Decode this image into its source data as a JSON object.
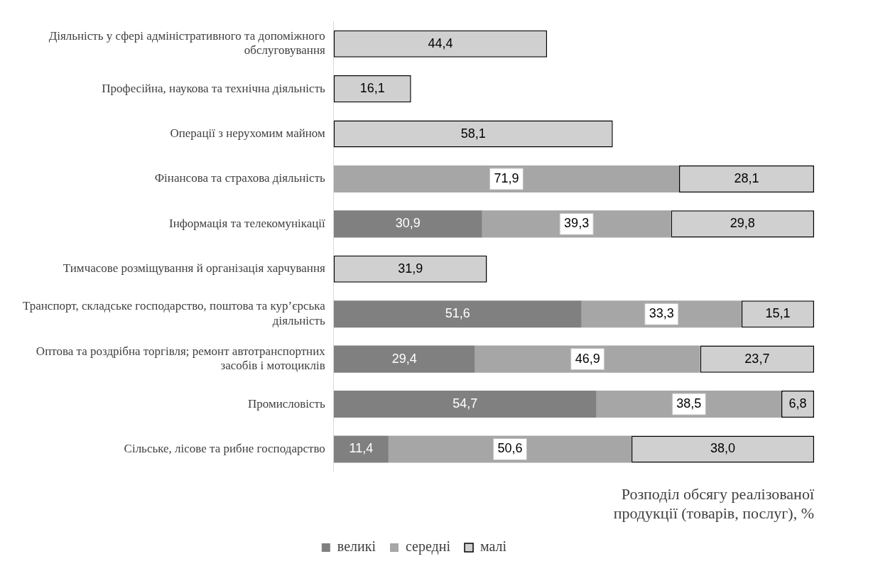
{
  "chart_data": {
    "type": "bar",
    "orientation": "horizontal",
    "stacked": true,
    "categories": [
      "Діяльність у сфері адміністративного та допоміжного обслуговування",
      "Професійна, наукова та технічна діяльність",
      "Операції з нерухомим майном",
      "Фінансова та страхова діяльність",
      "Інформація та телекомунікації",
      "Тимчасове розміщування й організація харчування",
      "Транспорт, складське господарство, поштова та кур’єрська діяльність",
      "Оптова та роздрібна торгівля; ремонт автотранспортних засобів і мотоциклів",
      "Промисловість",
      "Сільське, лісове та рибне господарство"
    ],
    "series": [
      {
        "name": "великі",
        "color": "#808080",
        "values": [
          null,
          null,
          null,
          null,
          30.9,
          null,
          51.6,
          29.4,
          54.7,
          11.4
        ],
        "value_labels": [
          null,
          null,
          null,
          null,
          "30,9",
          null,
          "51,6",
          "29,4",
          "54,7",
          "11,4"
        ]
      },
      {
        "name": "середні",
        "color": "#a6a6a6",
        "values": [
          null,
          null,
          null,
          71.9,
          39.3,
          null,
          33.3,
          46.9,
          38.5,
          50.6
        ],
        "value_labels": [
          null,
          null,
          null,
          "71,9",
          "39,3",
          null,
          "33,3",
          "46,9",
          "38,5",
          "50,6"
        ]
      },
      {
        "name": "малі",
        "color": "#d0d0d0",
        "values": [
          44.4,
          16.1,
          58.1,
          28.1,
          29.8,
          31.9,
          15.1,
          23.7,
          6.8,
          38.0
        ],
        "value_labels": [
          "44,4",
          "16,1",
          "58,1",
          "28,1",
          "29,8",
          "31,9",
          "15,1",
          "23,7",
          "6,8",
          "38,0"
        ]
      }
    ],
    "xlabel": "Розподіл обсягу реалізованої продукції (товарів, послуг), %",
    "xlim": [
      0,
      100
    ],
    "tick_labels": "y",
    "grid": false,
    "legend": "bottom"
  }
}
